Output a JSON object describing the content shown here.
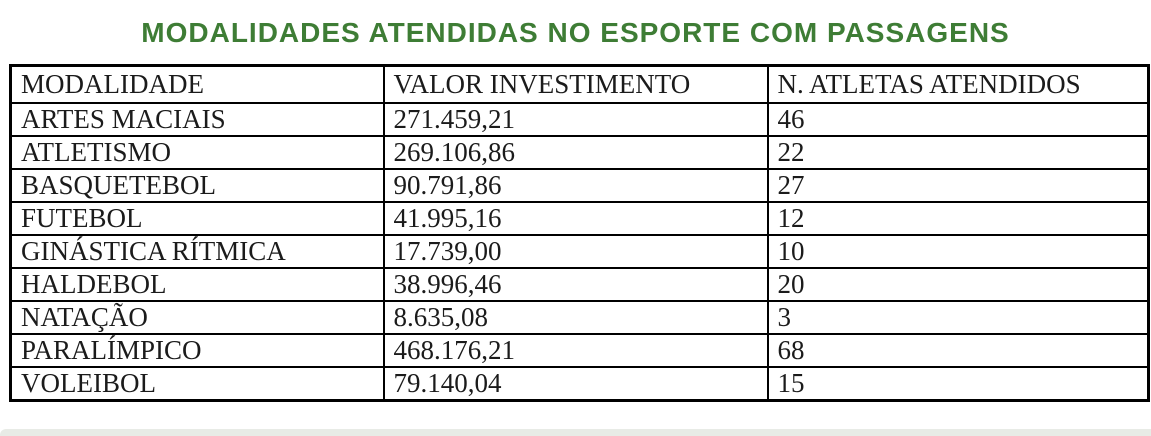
{
  "title": "MODALIDADES ATENDIDAS NO ESPORTE COM PASSAGENS",
  "colors": {
    "title_green": "#3e7d35",
    "border_black": "#000000",
    "text": "#1b1b1b",
    "bottom_band": "#e8ebe6"
  },
  "table": {
    "headers": [
      "MODALIDADE",
      "VALOR INVESTIMENTO",
      "N. ATLETAS ATENDIDOS"
    ],
    "rows": [
      [
        "ARTES MACIAIS",
        "271.459,21",
        "46"
      ],
      [
        "ATLETISMO",
        "269.106,86",
        "22"
      ],
      [
        "BASQUETEBOL",
        "90.791,86",
        "27"
      ],
      [
        "FUTEBOL",
        "41.995,16",
        "12"
      ],
      [
        "GINÁSTICA RÍTMICA",
        "17.739,00",
        "10"
      ],
      [
        "HALDEBOL",
        "38.996,46",
        "20"
      ],
      [
        "NATAÇÃO",
        "8.635,08",
        "3"
      ],
      [
        "PARALÍMPICO",
        "468.176,21",
        "68"
      ],
      [
        "VOLEIBOL",
        "79.140,04",
        "15"
      ]
    ]
  },
  "chart_data": {
    "type": "table",
    "title": "MODALIDADES ATENDIDAS NO ESPORTE COM PASSAGENS",
    "columns": [
      "MODALIDADE",
      "VALOR INVESTIMENTO",
      "N. ATLETAS ATENDIDOS"
    ],
    "categories": [
      "ARTES MACIAIS",
      "ATLETISMO",
      "BASQUETEBOL",
      "FUTEBOL",
      "GINÁSTICA RÍTMICA",
      "HALDEBOL",
      "NATAÇÃO",
      "PARALÍMPICO",
      "VOLEIBOL"
    ],
    "series": [
      {
        "name": "VALOR INVESTIMENTO",
        "values": [
          271459.21,
          269106.86,
          90791.86,
          41995.16,
          17739.0,
          38996.46,
          8635.08,
          468176.21,
          79140.04
        ]
      },
      {
        "name": "N. ATLETAS ATENDIDOS",
        "values": [
          46,
          22,
          27,
          12,
          10,
          20,
          3,
          68,
          15
        ]
      }
    ]
  }
}
